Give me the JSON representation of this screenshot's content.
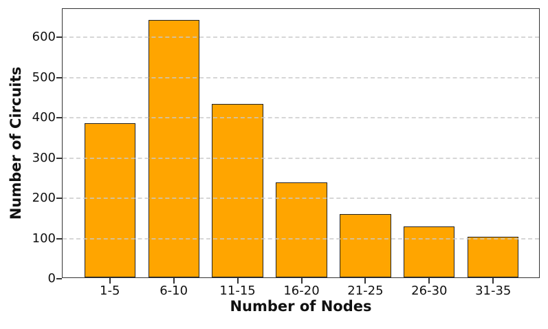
{
  "figure": {
    "background_color": "#ffffff",
    "text_color": "#111111"
  },
  "chart_data": {
    "type": "bar",
    "title": "",
    "categories": [
      "1-5",
      "6-10",
      "11-15",
      "16-20",
      "21-25",
      "26-30",
      "31-35"
    ],
    "values": [
      383,
      640,
      432,
      236,
      157,
      126,
      101
    ],
    "xlabel": "Number of Nodes",
    "ylabel": "Number of Circuits",
    "yticks": [
      0,
      100,
      200,
      300,
      400,
      500,
      600
    ],
    "ylim": [
      0,
      671
    ],
    "xlim_units": [
      -0.74,
      6.74
    ],
    "bar_width_units": 0.8,
    "bar_color": "#FFA500",
    "bar_edge_color": "#222222",
    "grid": "horizontal-dashed",
    "grid_color": "#c9c9c9",
    "grid_above_bars": true,
    "legend_position": "none"
  }
}
